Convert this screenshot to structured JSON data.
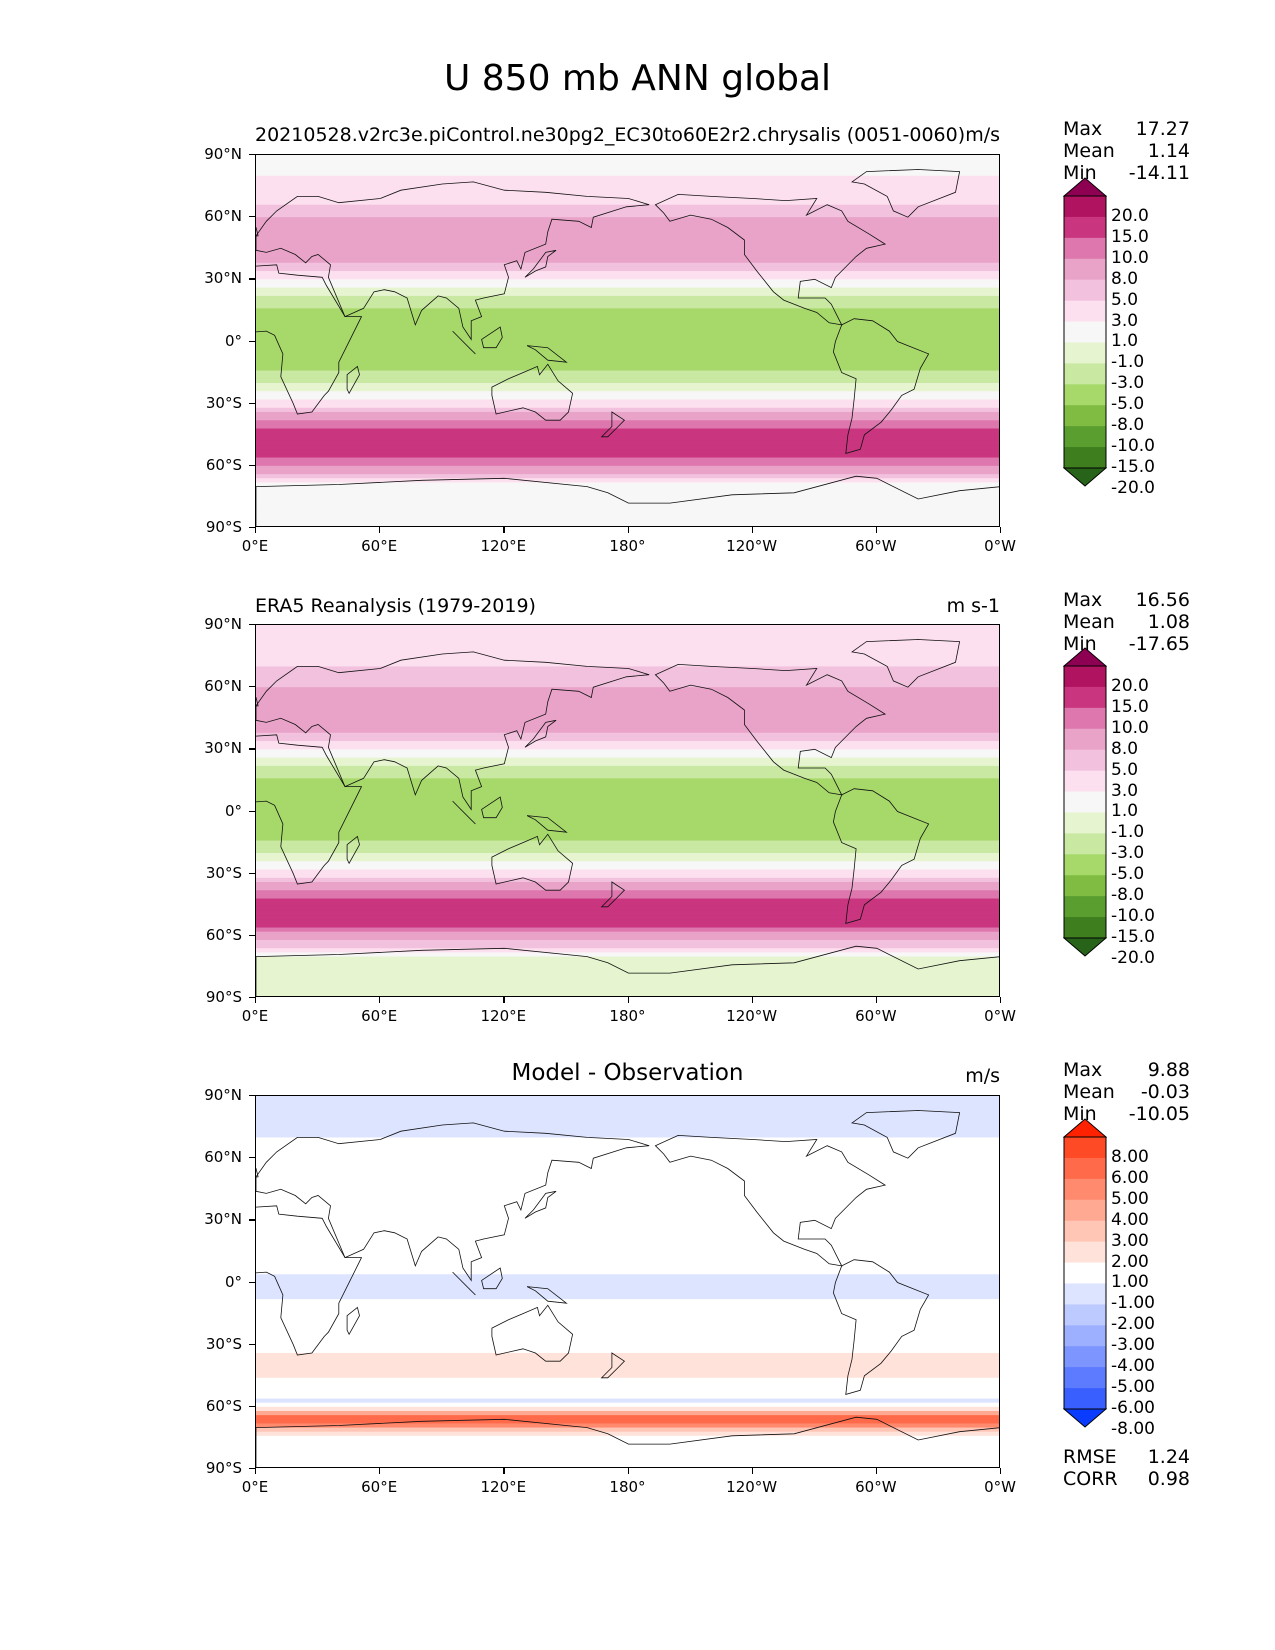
{
  "figure": {
    "title": "U 850 mb ANN global"
  },
  "chart_data": [
    {
      "type": "heatmap",
      "title": "20210528.v2rc3e.piControl.ne30pg2_EC30to60E2r2.chrysalis (0051-0060)",
      "units": "m/s",
      "stats": {
        "Max": "17.27",
        "Mean": "1.14",
        "Min": "-14.11"
      },
      "ylabel_ticks": [
        "90°N",
        "60°N",
        "30°N",
        "0°",
        "30°S",
        "60°S",
        "90°S"
      ],
      "xlabel_ticks": [
        "0°E",
        "60°E",
        "120°E",
        "180°",
        "120°W",
        "60°W",
        "0°W"
      ],
      "colorbar": {
        "levels": [
          "20.0",
          "15.0",
          "10.0",
          "8.0",
          "5.0",
          "3.0",
          "1.0",
          "-1.0",
          "-3.0",
          "-5.0",
          "-8.0",
          "-10.0",
          "-15.0",
          "-20.0"
        ],
        "colors": [
          "#8e0152",
          "#b0135f",
          "#c9357f",
          "#de77ae",
          "#e9a3c9",
          "#f1c1dd",
          "#fde0ef",
          "#f7f7f7",
          "#e6f5d0",
          "#c9e8a2",
          "#a6d96a",
          "#7fbc41",
          "#5a9e2f",
          "#3f7e1f",
          "#276419"
        ],
        "extend": "both"
      },
      "zonal_profile": [
        {
          "lat": 85,
          "u": 0.5
        },
        {
          "lat": 70,
          "u": 2
        },
        {
          "lat": 60,
          "u": 5
        },
        {
          "lat": 50,
          "u": 7
        },
        {
          "lat": 40,
          "u": 6
        },
        {
          "lat": 30,
          "u": 1
        },
        {
          "lat": 20,
          "u": -4
        },
        {
          "lat": 10,
          "u": -7
        },
        {
          "lat": 0,
          "u": -6
        },
        {
          "lat": -10,
          "u": -7
        },
        {
          "lat": -20,
          "u": -3
        },
        {
          "lat": -30,
          "u": 2
        },
        {
          "lat": -40,
          "u": 9
        },
        {
          "lat": -50,
          "u": 14
        },
        {
          "lat": -60,
          "u": 8
        },
        {
          "lat": -70,
          "u": 0
        },
        {
          "lat": -85,
          "u": -1
        }
      ]
    },
    {
      "type": "heatmap",
      "title": "ERA5 Reanalysis (1979-2019)",
      "units": "m s-1",
      "stats": {
        "Max": "16.56",
        "Mean": "1.08",
        "Min": "-17.65"
      },
      "ylabel_ticks": [
        "90°N",
        "60°N",
        "30°N",
        "0°",
        "30°S",
        "60°S",
        "90°S"
      ],
      "xlabel_ticks": [
        "0°E",
        "60°E",
        "120°E",
        "180°",
        "120°W",
        "60°W",
        "0°W"
      ],
      "colorbar": {
        "levels": [
          "20.0",
          "15.0",
          "10.0",
          "8.0",
          "5.0",
          "3.0",
          "1.0",
          "-1.0",
          "-3.0",
          "-5.0",
          "-8.0",
          "-10.0",
          "-15.0",
          "-20.0"
        ],
        "colors": [
          "#8e0152",
          "#b0135f",
          "#c9357f",
          "#de77ae",
          "#e9a3c9",
          "#f1c1dd",
          "#fde0ef",
          "#f7f7f7",
          "#e6f5d0",
          "#c9e8a2",
          "#a6d96a",
          "#7fbc41",
          "#5a9e2f",
          "#3f7e1f",
          "#276419"
        ],
        "extend": "both"
      },
      "zonal_profile": [
        {
          "lat": 85,
          "u": 2
        },
        {
          "lat": 70,
          "u": 3
        },
        {
          "lat": 60,
          "u": 5
        },
        {
          "lat": 50,
          "u": 7
        },
        {
          "lat": 40,
          "u": 6
        },
        {
          "lat": 30,
          "u": 1
        },
        {
          "lat": 20,
          "u": -4
        },
        {
          "lat": 10,
          "u": -7
        },
        {
          "lat": 0,
          "u": -6
        },
        {
          "lat": -10,
          "u": -7
        },
        {
          "lat": -20,
          "u": -3
        },
        {
          "lat": -30,
          "u": 2
        },
        {
          "lat": -40,
          "u": 9
        },
        {
          "lat": -50,
          "u": 13
        },
        {
          "lat": -60,
          "u": 7
        },
        {
          "lat": -70,
          "u": -1
        },
        {
          "lat": -85,
          "u": -2
        }
      ]
    },
    {
      "type": "heatmap",
      "title": "Model - Observation",
      "units": "m/s",
      "stats": {
        "Max": "9.88",
        "Mean": "-0.03",
        "Min": "-10.05"
      },
      "metrics": {
        "RMSE": "1.24",
        "CORR": "0.98"
      },
      "ylabel_ticks": [
        "90°N",
        "60°N",
        "30°N",
        "0°",
        "30°S",
        "60°S",
        "90°S"
      ],
      "xlabel_ticks": [
        "0°E",
        "60°E",
        "120°E",
        "180°",
        "120°W",
        "60°W",
        "0°W"
      ],
      "colorbar": {
        "levels": [
          "8.00",
          "6.00",
          "5.00",
          "4.00",
          "3.00",
          "2.00",
          "1.00",
          "-1.00",
          "-2.00",
          "-3.00",
          "-4.00",
          "-5.00",
          "-6.00",
          "-8.00"
        ],
        "colors": [
          "#ff2200",
          "#ff4a26",
          "#ff6a4a",
          "#ff8a6e",
          "#ffa892",
          "#ffc6b6",
          "#ffe3da",
          "#ffffff",
          "#dde4ff",
          "#bdcaff",
          "#9cb0ff",
          "#7c95ff",
          "#5c7bff",
          "#3a5fff",
          "#0a3cff"
        ],
        "extend": "both"
      },
      "zonal_profile": [
        {
          "lat": 85,
          "u": -1.5
        },
        {
          "lat": 70,
          "u": -1
        },
        {
          "lat": 60,
          "u": 0
        },
        {
          "lat": 45,
          "u": 0
        },
        {
          "lat": 30,
          "u": 1
        },
        {
          "lat": 15,
          "u": 0
        },
        {
          "lat": 0,
          "u": -1.5
        },
        {
          "lat": -15,
          "u": -0.5
        },
        {
          "lat": -30,
          "u": 0
        },
        {
          "lat": -40,
          "u": 2
        },
        {
          "lat": -50,
          "u": 0
        },
        {
          "lat": -58,
          "u": -1.5
        },
        {
          "lat": -66,
          "u": 6
        },
        {
          "lat": -75,
          "u": 0
        },
        {
          "lat": -85,
          "u": 0
        }
      ]
    }
  ]
}
